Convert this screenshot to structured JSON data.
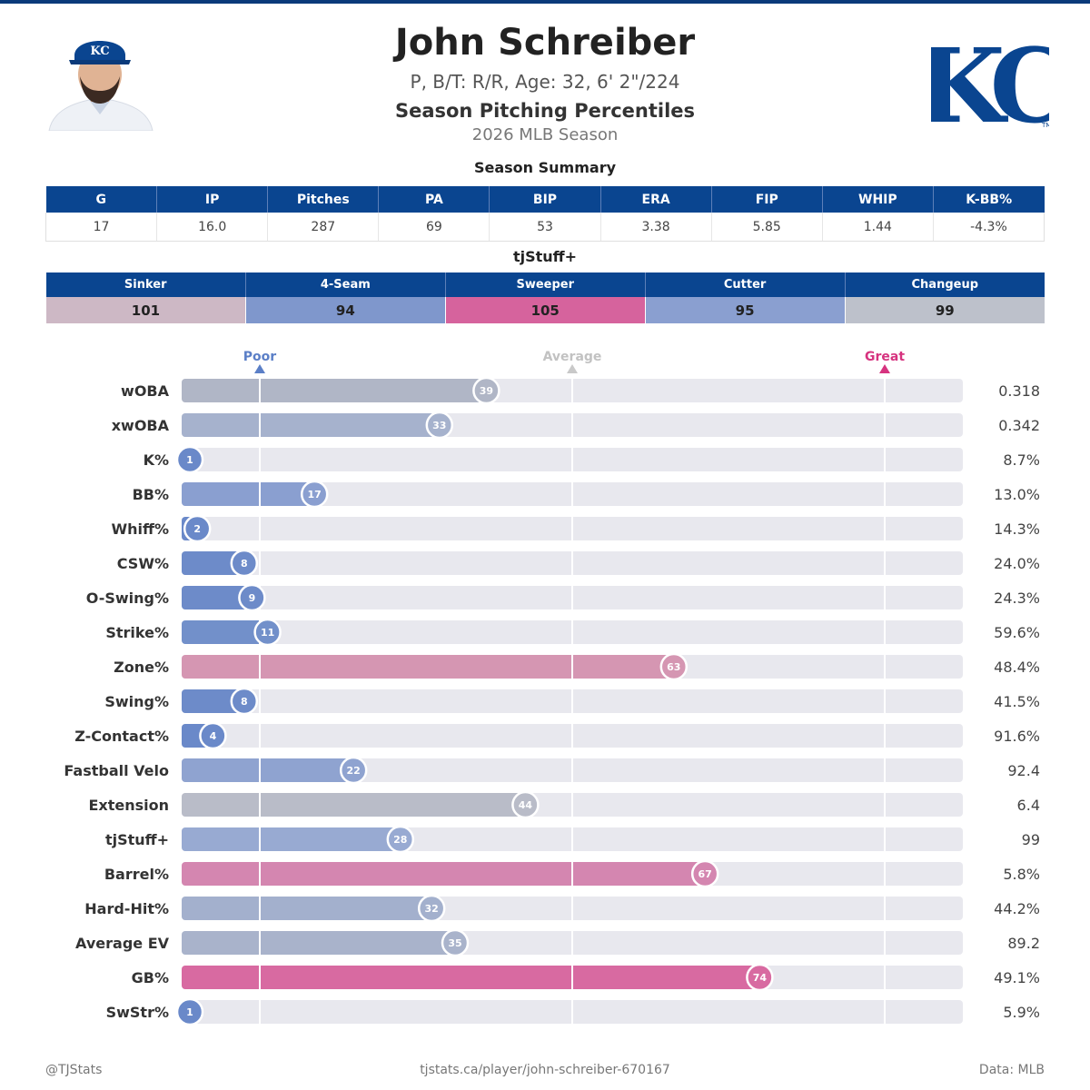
{
  "header": {
    "name": "John Schreiber",
    "bio": "P, B/T: R/R, Age: 32, 6' 2\"/224",
    "subtitle": "Season Pitching Percentiles",
    "season": "2026 MLB Season",
    "logo_text": "KC"
  },
  "summary": {
    "title": "Season Summary",
    "columns": [
      "G",
      "IP",
      "Pitches",
      "PA",
      "BIP",
      "ERA",
      "FIP",
      "WHIP",
      "K-BB%"
    ],
    "values": [
      "17",
      "16.0",
      "287",
      "69",
      "53",
      "3.38",
      "5.85",
      "1.44",
      "-4.3%"
    ]
  },
  "tjstuff": {
    "title": "tjStuff+",
    "columns": [
      "Sinker",
      "4-Seam",
      "Sweeper",
      "Cutter",
      "Changeup"
    ],
    "values": [
      "101",
      "94",
      "105",
      "95",
      "99"
    ],
    "colors": [
      "#cdb8c5",
      "#7f97cc",
      "#d6639d",
      "#8a9fd0",
      "#bdc1cb"
    ]
  },
  "colors": {
    "brand": "#0a4590",
    "poor": "#5b7fc7",
    "average": "#b8b8b8",
    "great": "#d6337f",
    "track": "#e8e8ee"
  },
  "chart_data": {
    "type": "bar",
    "orientation": "horizontal",
    "markers": [
      {
        "label": "Poor",
        "percentile": 10
      },
      {
        "label": "Average",
        "percentile": 50
      },
      {
        "label": "Great",
        "percentile": 90
      }
    ],
    "xlim": [
      0,
      100
    ],
    "rows": [
      {
        "metric": "wOBA",
        "percentile": 39,
        "value": "0.318",
        "color": "#b0b6c6"
      },
      {
        "metric": "xwOBA",
        "percentile": 33,
        "value": "0.342",
        "color": "#a6b2cd"
      },
      {
        "metric": "K%",
        "percentile": 1,
        "value": "8.7%",
        "color": "#6a89c9"
      },
      {
        "metric": "BB%",
        "percentile": 17,
        "value": "13.0%",
        "color": "#8a9fd0"
      },
      {
        "metric": "Whiff%",
        "percentile": 2,
        "value": "14.3%",
        "color": "#6a89c9"
      },
      {
        "metric": "CSW%",
        "percentile": 8,
        "value": "24.0%",
        "color": "#6d8bc9"
      },
      {
        "metric": "O-Swing%",
        "percentile": 9,
        "value": "24.3%",
        "color": "#6d8bc9"
      },
      {
        "metric": "Strike%",
        "percentile": 11,
        "value": "59.6%",
        "color": "#7290ca"
      },
      {
        "metric": "Zone%",
        "percentile": 63,
        "value": "48.4%",
        "color": "#d596b2"
      },
      {
        "metric": "Swing%",
        "percentile": 8,
        "value": "41.5%",
        "color": "#6d8bc9"
      },
      {
        "metric": "Z-Contact%",
        "percentile": 4,
        "value": "91.6%",
        "color": "#6a89c9"
      },
      {
        "metric": "Fastball Velo",
        "percentile": 22,
        "value": "92.4",
        "color": "#8fa3d0"
      },
      {
        "metric": "Extension",
        "percentile": 44,
        "value": "6.4",
        "color": "#b9bcc8"
      },
      {
        "metric": "tjStuff+",
        "percentile": 28,
        "value": "99",
        "color": "#98aad2"
      },
      {
        "metric": "Barrel%",
        "percentile": 67,
        "value": "5.8%",
        "color": "#d486b0"
      },
      {
        "metric": "Hard-Hit%",
        "percentile": 32,
        "value": "44.2%",
        "color": "#a3b0cd"
      },
      {
        "metric": "Average EV",
        "percentile": 35,
        "value": "89.2",
        "color": "#a9b3cb"
      },
      {
        "metric": "GB%",
        "percentile": 74,
        "value": "49.1%",
        "color": "#d86aa1"
      },
      {
        "metric": "SwStr%",
        "percentile": 1,
        "value": "5.9%",
        "color": "#6a89c9"
      }
    ]
  },
  "footer": {
    "left": "@TJStats",
    "center": "tjstats.ca/player/john-schreiber-670167",
    "right": "Data: MLB"
  }
}
